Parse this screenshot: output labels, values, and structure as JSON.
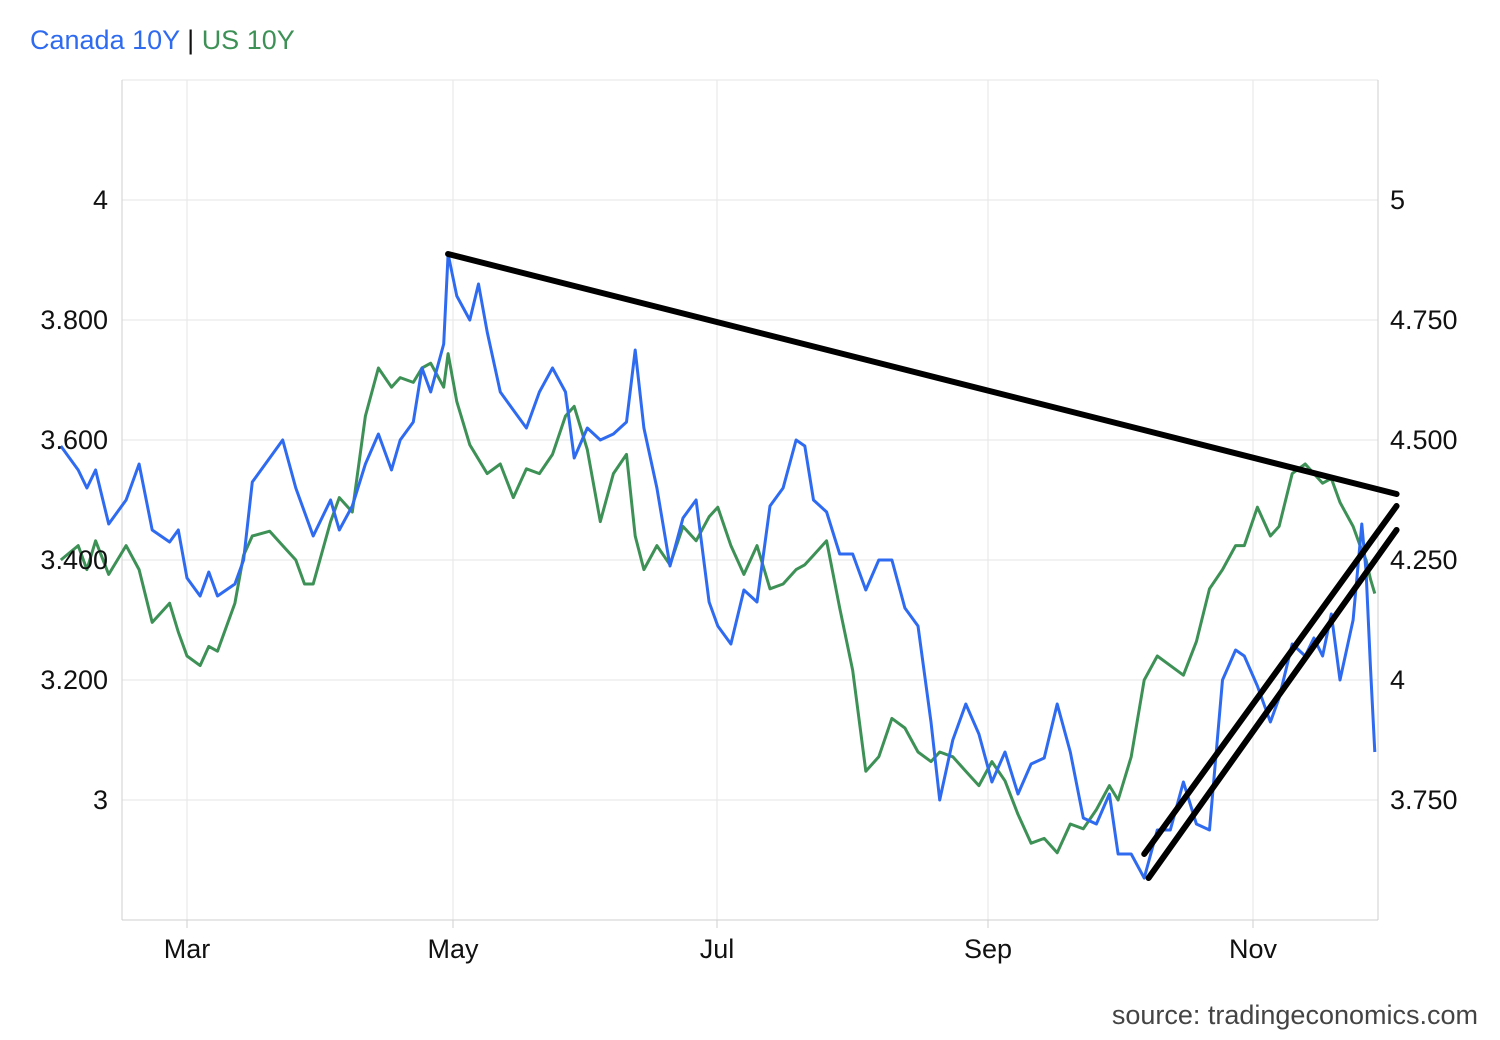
{
  "legend": {
    "series1": "Canada 10Y",
    "separator": "|",
    "series2": "US 10Y",
    "color1": "#2f6bf0",
    "color2": "#3e9156"
  },
  "source": "source: tradingeconomics.com",
  "chart_data": {
    "type": "line",
    "x_axis": {
      "ticks": [
        "Mar",
        "May",
        "Jul",
        "Sep",
        "Nov"
      ],
      "tick_dates": [
        "2024-03-01",
        "2024-05-01",
        "2024-07-01",
        "2024-09-01",
        "2024-11-01"
      ],
      "range": [
        "2024-02-01",
        "2024-11-29"
      ]
    },
    "y_left": {
      "ticks": [
        "3",
        "3.200",
        "3.400",
        "3.600",
        "3.800",
        "4"
      ],
      "tick_values": [
        3.0,
        3.2,
        3.4,
        3.6,
        3.8,
        4.0
      ],
      "range": [
        2.8,
        4.2
      ],
      "series": "Canada 10Y"
    },
    "y_right": {
      "ticks": [
        "3.750",
        "4",
        "4.250",
        "4.500",
        "4.750",
        "5"
      ],
      "tick_values": [
        3.75,
        4.0,
        4.25,
        4.5,
        4.75,
        5.0
      ],
      "range": [
        3.5,
        5.25
      ],
      "series": "US 10Y"
    },
    "grid": true,
    "series": [
      {
        "name": "Canada 10Y",
        "color": "#2f6bf0",
        "axis": "left",
        "points": [
          [
            "2024-02-01",
            3.59
          ],
          [
            "2024-02-05",
            3.55
          ],
          [
            "2024-02-07",
            3.52
          ],
          [
            "2024-02-09",
            3.55
          ],
          [
            "2024-02-12",
            3.46
          ],
          [
            "2024-02-16",
            3.5
          ],
          [
            "2024-02-19",
            3.56
          ],
          [
            "2024-02-22",
            3.45
          ],
          [
            "2024-02-26",
            3.43
          ],
          [
            "2024-02-28",
            3.45
          ],
          [
            "2024-03-01",
            3.37
          ],
          [
            "2024-03-04",
            3.34
          ],
          [
            "2024-03-06",
            3.38
          ],
          [
            "2024-03-08",
            3.34
          ],
          [
            "2024-03-12",
            3.36
          ],
          [
            "2024-03-14",
            3.4
          ],
          [
            "2024-03-16",
            3.53
          ],
          [
            "2024-03-20",
            3.57
          ],
          [
            "2024-03-23",
            3.6
          ],
          [
            "2024-03-26",
            3.52
          ],
          [
            "2024-03-28",
            3.48
          ],
          [
            "2024-03-30",
            3.44
          ],
          [
            "2024-04-03",
            3.5
          ],
          [
            "2024-04-05",
            3.45
          ],
          [
            "2024-04-08",
            3.49
          ],
          [
            "2024-04-11",
            3.56
          ],
          [
            "2024-04-14",
            3.61
          ],
          [
            "2024-04-17",
            3.55
          ],
          [
            "2024-04-19",
            3.6
          ],
          [
            "2024-04-22",
            3.63
          ],
          [
            "2024-04-24",
            3.72
          ],
          [
            "2024-04-26",
            3.68
          ],
          [
            "2024-04-29",
            3.76
          ],
          [
            "2024-04-30",
            3.91
          ],
          [
            "2024-05-02",
            3.84
          ],
          [
            "2024-05-05",
            3.8
          ],
          [
            "2024-05-07",
            3.86
          ],
          [
            "2024-05-09",
            3.78
          ],
          [
            "2024-05-12",
            3.68
          ],
          [
            "2024-05-15",
            3.65
          ],
          [
            "2024-05-18",
            3.62
          ],
          [
            "2024-05-21",
            3.68
          ],
          [
            "2024-05-24",
            3.72
          ],
          [
            "2024-05-27",
            3.68
          ],
          [
            "2024-05-29",
            3.57
          ],
          [
            "2024-06-01",
            3.62
          ],
          [
            "2024-06-04",
            3.6
          ],
          [
            "2024-06-07",
            3.61
          ],
          [
            "2024-06-10",
            3.63
          ],
          [
            "2024-06-12",
            3.75
          ],
          [
            "2024-06-14",
            3.62
          ],
          [
            "2024-06-17",
            3.52
          ],
          [
            "2024-06-20",
            3.39
          ],
          [
            "2024-06-23",
            3.47
          ],
          [
            "2024-06-26",
            3.5
          ],
          [
            "2024-06-29",
            3.33
          ],
          [
            "2024-07-01",
            3.29
          ],
          [
            "2024-07-04",
            3.26
          ],
          [
            "2024-07-07",
            3.35
          ],
          [
            "2024-07-10",
            3.33
          ],
          [
            "2024-07-13",
            3.49
          ],
          [
            "2024-07-16",
            3.52
          ],
          [
            "2024-07-19",
            3.6
          ],
          [
            "2024-07-21",
            3.59
          ],
          [
            "2024-07-23",
            3.5
          ],
          [
            "2024-07-26",
            3.48
          ],
          [
            "2024-07-29",
            3.41
          ],
          [
            "2024-08-01",
            3.41
          ],
          [
            "2024-08-04",
            3.35
          ],
          [
            "2024-08-07",
            3.4
          ],
          [
            "2024-08-10",
            3.4
          ],
          [
            "2024-08-13",
            3.32
          ],
          [
            "2024-08-16",
            3.29
          ],
          [
            "2024-08-19",
            3.13
          ],
          [
            "2024-08-21",
            3.0
          ],
          [
            "2024-08-24",
            3.1
          ],
          [
            "2024-08-27",
            3.16
          ],
          [
            "2024-08-30",
            3.11
          ],
          [
            "2024-09-02",
            3.03
          ],
          [
            "2024-09-05",
            3.08
          ],
          [
            "2024-09-08",
            3.01
          ],
          [
            "2024-09-11",
            3.06
          ],
          [
            "2024-09-14",
            3.07
          ],
          [
            "2024-09-17",
            3.16
          ],
          [
            "2024-09-20",
            3.08
          ],
          [
            "2024-09-23",
            2.97
          ],
          [
            "2024-09-26",
            2.96
          ],
          [
            "2024-09-29",
            3.01
          ],
          [
            "2024-10-01",
            2.91
          ],
          [
            "2024-10-04",
            2.91
          ],
          [
            "2024-10-07",
            2.87
          ],
          [
            "2024-10-10",
            2.95
          ],
          [
            "2024-10-13",
            2.95
          ],
          [
            "2024-10-16",
            3.03
          ],
          [
            "2024-10-19",
            2.96
          ],
          [
            "2024-10-22",
            2.95
          ],
          [
            "2024-10-25",
            3.2
          ],
          [
            "2024-10-28",
            3.25
          ],
          [
            "2024-10-30",
            3.24
          ],
          [
            "2024-11-02",
            3.19
          ],
          [
            "2024-11-05",
            3.13
          ],
          [
            "2024-11-07",
            3.17
          ],
          [
            "2024-11-10",
            3.26
          ],
          [
            "2024-11-13",
            3.24
          ],
          [
            "2024-11-15",
            3.27
          ],
          [
            "2024-11-17",
            3.24
          ],
          [
            "2024-11-19",
            3.31
          ],
          [
            "2024-11-21",
            3.2
          ],
          [
            "2024-11-24",
            3.3
          ],
          [
            "2024-11-26",
            3.46
          ],
          [
            "2024-11-27",
            3.38
          ],
          [
            "2024-11-28",
            3.22
          ],
          [
            "2024-11-29",
            3.08
          ]
        ]
      },
      {
        "name": "US 10Y",
        "color": "#3e9156",
        "axis": "right",
        "points": [
          [
            "2024-02-01",
            4.25
          ],
          [
            "2024-02-05",
            4.28
          ],
          [
            "2024-02-07",
            4.23
          ],
          [
            "2024-02-09",
            4.29
          ],
          [
            "2024-02-12",
            4.22
          ],
          [
            "2024-02-16",
            4.28
          ],
          [
            "2024-02-19",
            4.23
          ],
          [
            "2024-02-22",
            4.12
          ],
          [
            "2024-02-26",
            4.16
          ],
          [
            "2024-02-28",
            4.1
          ],
          [
            "2024-03-01",
            4.05
          ],
          [
            "2024-03-04",
            4.03
          ],
          [
            "2024-03-06",
            4.07
          ],
          [
            "2024-03-08",
            4.06
          ],
          [
            "2024-03-12",
            4.16
          ],
          [
            "2024-03-14",
            4.26
          ],
          [
            "2024-03-16",
            4.3
          ],
          [
            "2024-03-20",
            4.31
          ],
          [
            "2024-03-23",
            4.28
          ],
          [
            "2024-03-26",
            4.25
          ],
          [
            "2024-03-28",
            4.2
          ],
          [
            "2024-03-30",
            4.2
          ],
          [
            "2024-04-03",
            4.33
          ],
          [
            "2024-04-05",
            4.38
          ],
          [
            "2024-04-08",
            4.35
          ],
          [
            "2024-04-11",
            4.55
          ],
          [
            "2024-04-14",
            4.65
          ],
          [
            "2024-04-17",
            4.61
          ],
          [
            "2024-04-19",
            4.63
          ],
          [
            "2024-04-22",
            4.62
          ],
          [
            "2024-04-24",
            4.65
          ],
          [
            "2024-04-26",
            4.66
          ],
          [
            "2024-04-29",
            4.61
          ],
          [
            "2024-04-30",
            4.68
          ],
          [
            "2024-05-02",
            4.58
          ],
          [
            "2024-05-05",
            4.49
          ],
          [
            "2024-05-07",
            4.46
          ],
          [
            "2024-05-09",
            4.43
          ],
          [
            "2024-05-12",
            4.45
          ],
          [
            "2024-05-15",
            4.38
          ],
          [
            "2024-05-18",
            4.44
          ],
          [
            "2024-05-21",
            4.43
          ],
          [
            "2024-05-24",
            4.47
          ],
          [
            "2024-05-27",
            4.55
          ],
          [
            "2024-05-29",
            4.57
          ],
          [
            "2024-06-01",
            4.48
          ],
          [
            "2024-06-04",
            4.33
          ],
          [
            "2024-06-07",
            4.43
          ],
          [
            "2024-06-10",
            4.47
          ],
          [
            "2024-06-12",
            4.3
          ],
          [
            "2024-06-14",
            4.23
          ],
          [
            "2024-06-17",
            4.28
          ],
          [
            "2024-06-20",
            4.24
          ],
          [
            "2024-06-23",
            4.32
          ],
          [
            "2024-06-26",
            4.29
          ],
          [
            "2024-06-29",
            4.34
          ],
          [
            "2024-07-01",
            4.36
          ],
          [
            "2024-07-04",
            4.28
          ],
          [
            "2024-07-07",
            4.22
          ],
          [
            "2024-07-10",
            4.28
          ],
          [
            "2024-07-13",
            4.19
          ],
          [
            "2024-07-16",
            4.2
          ],
          [
            "2024-07-19",
            4.23
          ],
          [
            "2024-07-21",
            4.24
          ],
          [
            "2024-07-23",
            4.26
          ],
          [
            "2024-07-26",
            4.29
          ],
          [
            "2024-07-29",
            4.15
          ],
          [
            "2024-08-01",
            4.02
          ],
          [
            "2024-08-04",
            3.81
          ],
          [
            "2024-08-07",
            3.84
          ],
          [
            "2024-08-10",
            3.92
          ],
          [
            "2024-08-13",
            3.9
          ],
          [
            "2024-08-16",
            3.85
          ],
          [
            "2024-08-19",
            3.83
          ],
          [
            "2024-08-21",
            3.85
          ],
          [
            "2024-08-24",
            3.84
          ],
          [
            "2024-08-27",
            3.81
          ],
          [
            "2024-08-30",
            3.78
          ],
          [
            "2024-09-02",
            3.83
          ],
          [
            "2024-09-05",
            3.79
          ],
          [
            "2024-09-08",
            3.72
          ],
          [
            "2024-09-11",
            3.66
          ],
          [
            "2024-09-14",
            3.67
          ],
          [
            "2024-09-17",
            3.64
          ],
          [
            "2024-09-20",
            3.7
          ],
          [
            "2024-09-23",
            3.69
          ],
          [
            "2024-09-26",
            3.73
          ],
          [
            "2024-09-29",
            3.78
          ],
          [
            "2024-10-01",
            3.75
          ],
          [
            "2024-10-04",
            3.84
          ],
          [
            "2024-10-07",
            4.0
          ],
          [
            "2024-10-10",
            4.05
          ],
          [
            "2024-10-13",
            4.03
          ],
          [
            "2024-10-16",
            4.01
          ],
          [
            "2024-10-19",
            4.08
          ],
          [
            "2024-10-22",
            4.19
          ],
          [
            "2024-10-25",
            4.23
          ],
          [
            "2024-10-28",
            4.28
          ],
          [
            "2024-10-30",
            4.28
          ],
          [
            "2024-11-02",
            4.36
          ],
          [
            "2024-11-05",
            4.3
          ],
          [
            "2024-11-07",
            4.32
          ],
          [
            "2024-11-10",
            4.43
          ],
          [
            "2024-11-13",
            4.45
          ],
          [
            "2024-11-15",
            4.43
          ],
          [
            "2024-11-17",
            4.41
          ],
          [
            "2024-11-19",
            4.42
          ],
          [
            "2024-11-21",
            4.37
          ],
          [
            "2024-11-24",
            4.32
          ],
          [
            "2024-11-26",
            4.27
          ],
          [
            "2024-11-27",
            4.25
          ],
          [
            "2024-11-28",
            4.21
          ],
          [
            "2024-11-29",
            4.18
          ]
        ]
      }
    ],
    "annotations": {
      "trend_lines": [
        {
          "name": "upper-resistance-line",
          "axis": "left",
          "from": [
            "2024-04-30",
            3.91
          ],
          "to": [
            "2024-12-04",
            3.51
          ]
        },
        {
          "name": "lower-support-line-1",
          "axis": "left",
          "from": [
            "2024-10-07",
            2.91
          ],
          "to": [
            "2024-12-04",
            3.49
          ]
        },
        {
          "name": "lower-support-line-2",
          "axis": "left",
          "from": [
            "2024-10-08",
            2.87
          ],
          "to": [
            "2024-12-04",
            3.45
          ]
        }
      ],
      "color": "#000000"
    }
  }
}
